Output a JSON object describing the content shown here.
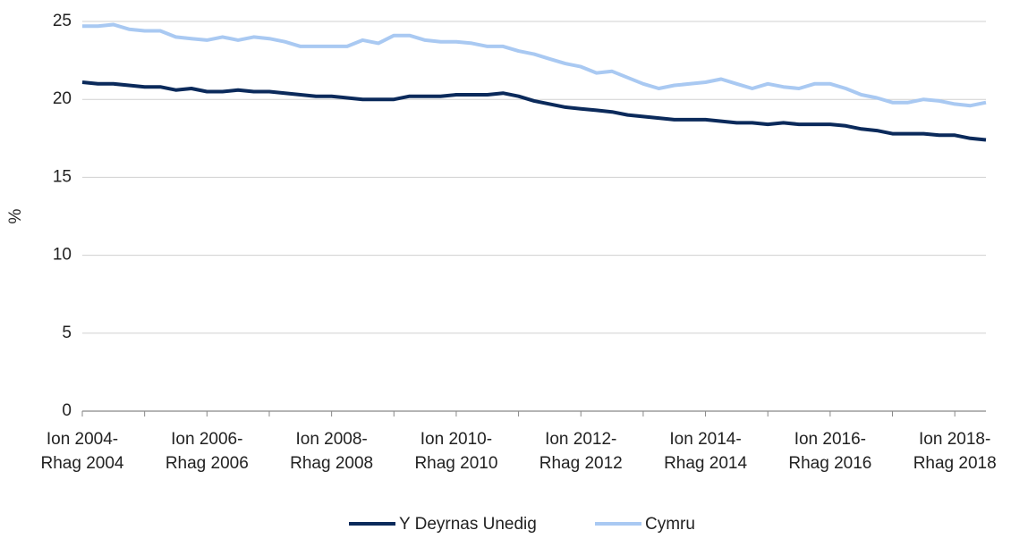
{
  "chart_data": {
    "type": "line",
    "ylabel": "%",
    "categories": [
      "Ion 2004-Rhag 2004",
      null,
      null,
      null,
      null,
      null,
      null,
      null,
      "Ion 2006-Rhag 2006",
      null,
      null,
      null,
      null,
      null,
      null,
      null,
      "Ion 2008-Rhag 2008",
      null,
      null,
      null,
      null,
      null,
      null,
      null,
      "Ion 2010-Rhag 2010",
      null,
      null,
      null,
      null,
      null,
      null,
      null,
      "Ion 2012-Rhag 2012",
      null,
      null,
      null,
      null,
      null,
      null,
      null,
      "Ion 2014-Rhag 2014",
      null,
      null,
      null,
      null,
      null,
      null,
      null,
      "Ion 2016-Rhag 2016",
      null,
      null,
      null,
      null,
      null,
      null,
      null,
      "Ion 2018-Rhag 2018",
      null,
      null
    ],
    "series": [
      {
        "name": "Y Deyrnas Unedig",
        "color": "#0b2a5b",
        "values": [
          21.1,
          21.0,
          21.0,
          20.9,
          20.8,
          20.8,
          20.6,
          20.7,
          20.5,
          20.5,
          20.6,
          20.5,
          20.5,
          20.4,
          20.3,
          20.2,
          20.2,
          20.1,
          20.0,
          20.0,
          20.0,
          20.2,
          20.2,
          20.2,
          20.3,
          20.3,
          20.3,
          20.4,
          20.2,
          19.9,
          19.7,
          19.5,
          19.4,
          19.3,
          19.2,
          19.0,
          18.9,
          18.8,
          18.7,
          18.7,
          18.7,
          18.6,
          18.5,
          18.5,
          18.4,
          18.5,
          18.4,
          18.4,
          18.4,
          18.3,
          18.1,
          18.0,
          17.8,
          17.8,
          17.8,
          17.7,
          17.7,
          17.5,
          17.4
        ]
      },
      {
        "name": "Cymru",
        "color": "#a9c9f2",
        "values": [
          24.7,
          24.7,
          24.8,
          24.5,
          24.4,
          24.4,
          24.0,
          23.9,
          23.8,
          24.0,
          23.8,
          24.0,
          23.9,
          23.7,
          23.4,
          23.4,
          23.4,
          23.4,
          23.8,
          23.6,
          24.1,
          24.1,
          23.8,
          23.7,
          23.7,
          23.6,
          23.4,
          23.4,
          23.1,
          22.9,
          22.6,
          22.3,
          22.1,
          21.7,
          21.8,
          21.4,
          21.0,
          20.7,
          20.9,
          21.0,
          21.1,
          21.3,
          21.0,
          20.7,
          21.0,
          20.8,
          20.7,
          21.0,
          21.0,
          20.7,
          20.3,
          20.1,
          19.8,
          19.8,
          20.0,
          19.9,
          19.7,
          19.6,
          19.8
        ]
      }
    ],
    "ylim": [
      0,
      25
    ],
    "yticks": [
      0,
      5,
      10,
      15,
      20,
      25
    ],
    "grid": true,
    "legend": "bottom"
  }
}
